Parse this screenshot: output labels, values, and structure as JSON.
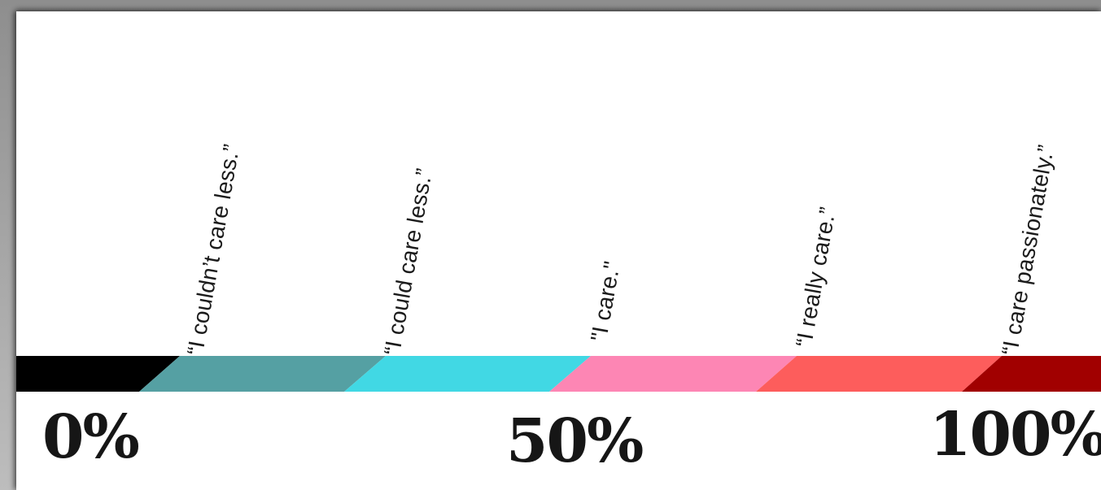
{
  "scale": {
    "segments": [
      {
        "name": "segment-black",
        "color": "#000000"
      },
      {
        "name": "segment-teal",
        "color": "#55A0A3"
      },
      {
        "name": "segment-cyan",
        "color": "#41D8E4"
      },
      {
        "name": "segment-pink",
        "color": "#FD86B4"
      },
      {
        "name": "segment-coral",
        "color": "#FD5D5C"
      },
      {
        "name": "segment-dark-red",
        "color": "#A10000"
      }
    ],
    "quotes": [
      "“I couldn’t care less.”",
      "“I could care less.”",
      "\"I care.\"",
      "“I really care.”",
      "“I care passionately.”"
    ],
    "percent_labels": {
      "start": "0%",
      "middle": "50%",
      "end": "100%"
    }
  }
}
